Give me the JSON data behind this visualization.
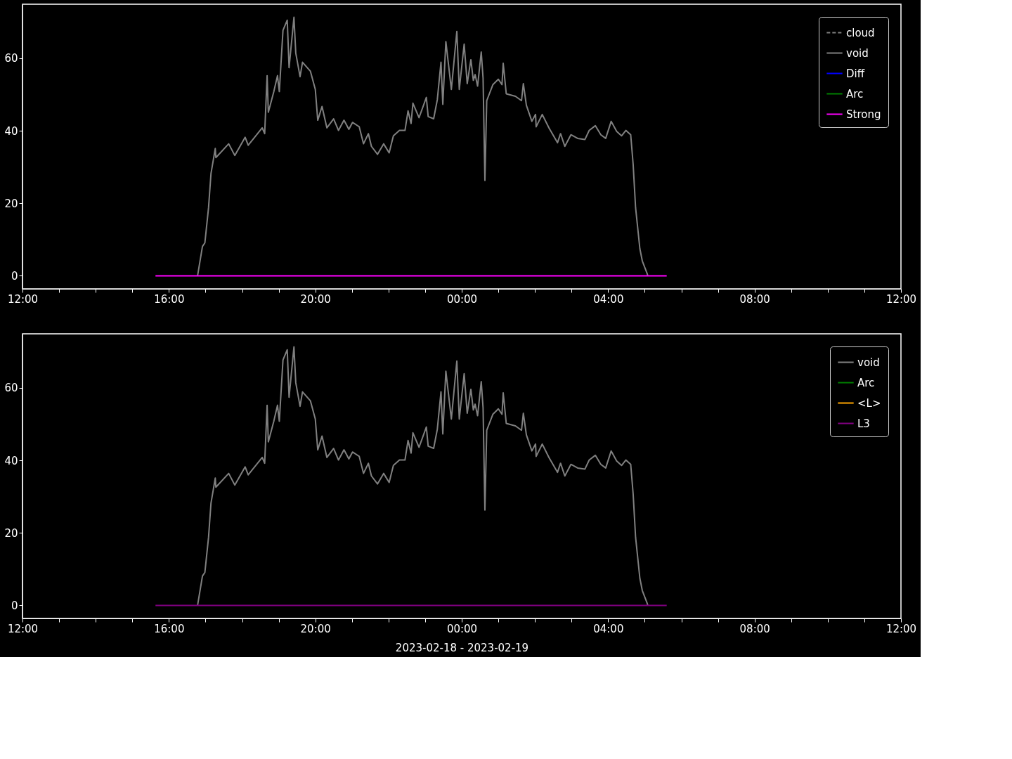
{
  "chart_data": [
    {
      "type": "line",
      "xlim": [
        "2023-02-18T12:00",
        "2023-02-19T12:00"
      ],
      "ylim": [
        -3.6,
        74.9
      ],
      "yticks": [
        0,
        20,
        40,
        60
      ],
      "grid": false,
      "legend": "top right",
      "xticks": [
        {
          "value": "2023-02-18T12:00",
          "label": "12:00"
        },
        {
          "value": "2023-02-18T13:00",
          "label": null
        },
        {
          "value": "2023-02-18T14:00",
          "label": null
        },
        {
          "value": "2023-02-18T15:00",
          "label": null
        },
        {
          "value": "2023-02-18T16:00",
          "label": "16:00"
        },
        {
          "value": "2023-02-18T17:00",
          "label": null
        },
        {
          "value": "2023-02-18T18:00",
          "label": null
        },
        {
          "value": "2023-02-18T19:00",
          "label": null
        },
        {
          "value": "2023-02-18T20:00",
          "label": "20:00"
        },
        {
          "value": "2023-02-18T21:00",
          "label": null
        },
        {
          "value": "2023-02-18T22:00",
          "label": null
        },
        {
          "value": "2023-02-18T23:00",
          "label": null
        },
        {
          "value": "2023-02-19T00:00",
          "label": "00:00"
        },
        {
          "value": "2023-02-19T01:00",
          "label": null
        },
        {
          "value": "2023-02-19T02:00",
          "label": null
        },
        {
          "value": "2023-02-19T03:00",
          "label": null
        },
        {
          "value": "2023-02-19T04:00",
          "label": "04:00"
        },
        {
          "value": "2023-02-19T05:00",
          "label": null
        },
        {
          "value": "2023-02-19T06:00",
          "label": null
        },
        {
          "value": "2023-02-19T07:00",
          "label": null
        },
        {
          "value": "2023-02-19T08:00",
          "label": "08:00"
        },
        {
          "value": "2023-02-19T09:00",
          "label": null
        },
        {
          "value": "2023-02-19T10:00",
          "label": null
        },
        {
          "value": "2023-02-19T11:00",
          "label": null
        },
        {
          "value": "2023-02-19T12:00",
          "label": "12:00"
        }
      ],
      "series": [
        {
          "name": "cloud",
          "color": "#808080",
          "line_style": "dashed"
        },
        {
          "name": "void",
          "color": "#808080",
          "x": [
            "2023-02-18T16:47",
            "2023-02-18T16:55",
            "2023-02-18T16:59",
            "2023-02-18T17:05",
            "2023-02-18T17:09",
            "2023-02-18T17:16",
            "2023-02-18T17:17",
            "2023-02-18T17:38",
            "2023-02-18T17:48",
            "2023-02-18T18:05",
            "2023-02-18T18:10",
            "2023-02-18T18:33",
            "2023-02-18T18:37",
            "2023-02-18T18:41",
            "2023-02-18T18:43",
            "2023-02-18T18:52",
            "2023-02-18T18:58",
            "2023-02-18T19:01",
            "2023-02-18T19:07",
            "2023-02-18T19:14",
            "2023-02-18T19:17",
            "2023-02-18T19:25",
            "2023-02-18T19:28",
            "2023-02-18T19:35",
            "2023-02-18T19:39",
            "2023-02-18T19:52",
            "2023-02-18T20:00",
            "2023-02-18T20:04",
            "2023-02-18T20:11",
            "2023-02-18T20:19",
            "2023-02-18T20:30",
            "2023-02-18T20:38",
            "2023-02-18T20:47",
            "2023-02-18T20:55",
            "2023-02-18T21:01",
            "2023-02-18T21:12",
            "2023-02-18T21:19",
            "2023-02-18T21:27",
            "2023-02-18T21:32",
            "2023-02-18T21:42",
            "2023-02-18T21:52",
            "2023-02-18T22:01",
            "2023-02-18T22:08",
            "2023-02-18T22:18",
            "2023-02-18T22:27",
            "2023-02-18T22:32",
            "2023-02-18T22:37",
            "2023-02-18T22:40",
            "2023-02-18T22:50",
            "2023-02-18T23:02",
            "2023-02-18T23:05",
            "2023-02-18T23:14",
            "2023-02-18T23:20",
            "2023-02-18T23:26",
            "2023-02-18T23:29",
            "2023-02-18T23:34",
            "2023-02-18T23:43",
            "2023-02-18T23:52",
            "2023-02-18T23:56",
            "2023-02-19T00:04",
            "2023-02-19T00:09",
            "2023-02-19T00:15",
            "2023-02-19T00:19",
            "2023-02-19T00:22",
            "2023-02-19T00:26",
            "2023-02-19T00:32",
            "2023-02-19T00:35",
            "2023-02-19T00:38",
            "2023-02-19T00:41",
            "2023-02-19T00:51",
            "2023-02-19T01:00",
            "2023-02-19T01:06",
            "2023-02-19T01:08",
            "2023-02-19T01:13",
            "2023-02-19T01:28",
            "2023-02-19T01:38",
            "2023-02-19T01:41",
            "2023-02-19T01:46",
            "2023-02-19T01:55",
            "2023-02-19T02:01",
            "2023-02-19T02:02",
            "2023-02-19T02:12",
            "2023-02-19T02:23",
            "2023-02-19T02:37",
            "2023-02-19T02:42",
            "2023-02-19T02:49",
            "2023-02-19T02:59",
            "2023-02-19T03:10",
            "2023-02-19T03:22",
            "2023-02-19T03:29",
            "2023-02-19T03:39",
            "2023-02-19T03:48",
            "2023-02-19T03:56",
            "2023-02-19T04:05",
            "2023-02-19T04:14",
            "2023-02-19T04:22",
            "2023-02-19T04:29",
            "2023-02-19T04:37",
            "2023-02-19T04:41",
            "2023-02-19T04:45",
            "2023-02-19T04:52",
            "2023-02-19T04:56",
            "2023-02-19T05:04",
            "2023-02-19T05:05"
          ],
          "values": [
            0,
            8.1,
            9.1,
            18.8,
            28.2,
            35.1,
            32.6,
            36.4,
            33.2,
            38.2,
            36.0,
            40.8,
            39.2,
            55.2,
            45.1,
            50.8,
            55.2,
            50.8,
            67.7,
            70.5,
            57.4,
            71.3,
            61.4,
            54.9,
            58.9,
            56.4,
            51.4,
            42.9,
            46.7,
            40.8,
            43.3,
            40.1,
            42.9,
            40.4,
            42.3,
            41.1,
            36.4,
            39.2,
            35.7,
            33.5,
            36.4,
            33.9,
            38.6,
            40.1,
            40.1,
            45.5,
            42.0,
            47.6,
            43.6,
            49.2,
            43.9,
            43.3,
            48.6,
            58.9,
            47.3,
            64.6,
            51.4,
            67.4,
            51.4,
            63.9,
            53.0,
            59.6,
            53.9,
            55.5,
            52.3,
            61.7,
            54.5,
            26.3,
            48.3,
            52.7,
            54.2,
            52.7,
            58.6,
            50.2,
            49.5,
            48.3,
            53.0,
            47.0,
            42.6,
            44.5,
            41.1,
            44.5,
            40.8,
            36.7,
            39.2,
            35.7,
            38.9,
            37.9,
            37.6,
            40.1,
            41.4,
            38.9,
            37.9,
            42.6,
            39.8,
            38.6,
            40.1,
            38.9,
            30.7,
            18.8,
            7.5,
            4.1,
            0.6,
            0
          ]
        },
        {
          "name": "Diff",
          "color": "#0000ff"
        },
        {
          "name": "Arc",
          "color": "#008000"
        },
        {
          "name": "Strong",
          "color": "#ff00ff",
          "x": [
            "2023-02-18T15:38",
            "2023-02-19T05:36"
          ],
          "values": [
            0,
            0
          ]
        }
      ]
    },
    {
      "type": "line",
      "xlabel": "2023-02-18 - 2023-02-19",
      "xlim": [
        "2023-02-18T12:00",
        "2023-02-19T12:00"
      ],
      "ylim": [
        -3.6,
        74.9
      ],
      "yticks": [
        0,
        20,
        40,
        60
      ],
      "grid": false,
      "legend": "top right",
      "xticks": [
        {
          "value": "2023-02-18T12:00",
          "label": "12:00"
        },
        {
          "value": "2023-02-18T13:00",
          "label": null
        },
        {
          "value": "2023-02-18T14:00",
          "label": null
        },
        {
          "value": "2023-02-18T15:00",
          "label": null
        },
        {
          "value": "2023-02-18T16:00",
          "label": "16:00"
        },
        {
          "value": "2023-02-18T17:00",
          "label": null
        },
        {
          "value": "2023-02-18T18:00",
          "label": null
        },
        {
          "value": "2023-02-18T19:00",
          "label": null
        },
        {
          "value": "2023-02-18T20:00",
          "label": "20:00"
        },
        {
          "value": "2023-02-18T21:00",
          "label": null
        },
        {
          "value": "2023-02-18T22:00",
          "label": null
        },
        {
          "value": "2023-02-18T23:00",
          "label": null
        },
        {
          "value": "2023-02-19T00:00",
          "label": "00:00"
        },
        {
          "value": "2023-02-19T01:00",
          "label": null
        },
        {
          "value": "2023-02-19T02:00",
          "label": null
        },
        {
          "value": "2023-02-19T03:00",
          "label": null
        },
        {
          "value": "2023-02-19T04:00",
          "label": "04:00"
        },
        {
          "value": "2023-02-19T05:00",
          "label": null
        },
        {
          "value": "2023-02-19T06:00",
          "label": null
        },
        {
          "value": "2023-02-19T07:00",
          "label": null
        },
        {
          "value": "2023-02-19T08:00",
          "label": "08:00"
        },
        {
          "value": "2023-02-19T09:00",
          "label": null
        },
        {
          "value": "2023-02-19T10:00",
          "label": null
        },
        {
          "value": "2023-02-19T11:00",
          "label": null
        },
        {
          "value": "2023-02-19T12:00",
          "label": "12:00"
        }
      ],
      "series": [
        {
          "name": "void",
          "color": "#808080",
          "x": [
            "2023-02-18T16:47",
            "2023-02-18T16:55",
            "2023-02-18T16:59",
            "2023-02-18T17:05",
            "2023-02-18T17:09",
            "2023-02-18T17:16",
            "2023-02-18T17:17",
            "2023-02-18T17:38",
            "2023-02-18T17:48",
            "2023-02-18T18:05",
            "2023-02-18T18:10",
            "2023-02-18T18:33",
            "2023-02-18T18:37",
            "2023-02-18T18:41",
            "2023-02-18T18:43",
            "2023-02-18T18:52",
            "2023-02-18T18:58",
            "2023-02-18T19:01",
            "2023-02-18T19:07",
            "2023-02-18T19:14",
            "2023-02-18T19:17",
            "2023-02-18T19:25",
            "2023-02-18T19:28",
            "2023-02-18T19:35",
            "2023-02-18T19:39",
            "2023-02-18T19:52",
            "2023-02-18T20:00",
            "2023-02-18T20:04",
            "2023-02-18T20:11",
            "2023-02-18T20:19",
            "2023-02-18T20:30",
            "2023-02-18T20:38",
            "2023-02-18T20:47",
            "2023-02-18T20:55",
            "2023-02-18T21:01",
            "2023-02-18T21:12",
            "2023-02-18T21:19",
            "2023-02-18T21:27",
            "2023-02-18T21:32",
            "2023-02-18T21:42",
            "2023-02-18T21:52",
            "2023-02-18T22:01",
            "2023-02-18T22:08",
            "2023-02-18T22:18",
            "2023-02-18T22:27",
            "2023-02-18T22:32",
            "2023-02-18T22:37",
            "2023-02-18T22:40",
            "2023-02-18T22:50",
            "2023-02-18T23:02",
            "2023-02-18T23:05",
            "2023-02-18T23:14",
            "2023-02-18T23:20",
            "2023-02-18T23:26",
            "2023-02-18T23:29",
            "2023-02-18T23:34",
            "2023-02-18T23:43",
            "2023-02-18T23:52",
            "2023-02-18T23:56",
            "2023-02-19T00:04",
            "2023-02-19T00:09",
            "2023-02-19T00:15",
            "2023-02-19T00:19",
            "2023-02-19T00:22",
            "2023-02-19T00:26",
            "2023-02-19T00:32",
            "2023-02-19T00:35",
            "2023-02-19T00:38",
            "2023-02-19T00:41",
            "2023-02-19T00:51",
            "2023-02-19T01:00",
            "2023-02-19T01:06",
            "2023-02-19T01:08",
            "2023-02-19T01:13",
            "2023-02-19T01:28",
            "2023-02-19T01:38",
            "2023-02-19T01:41",
            "2023-02-19T01:46",
            "2023-02-19T01:55",
            "2023-02-19T02:01",
            "2023-02-19T02:02",
            "2023-02-19T02:12",
            "2023-02-19T02:23",
            "2023-02-19T02:37",
            "2023-02-19T02:42",
            "2023-02-19T02:49",
            "2023-02-19T02:59",
            "2023-02-19T03:10",
            "2023-02-19T03:22",
            "2023-02-19T03:29",
            "2023-02-19T03:39",
            "2023-02-19T03:48",
            "2023-02-19T03:56",
            "2023-02-19T04:05",
            "2023-02-19T04:14",
            "2023-02-19T04:22",
            "2023-02-19T04:29",
            "2023-02-19T04:37",
            "2023-02-19T04:41",
            "2023-02-19T04:45",
            "2023-02-19T04:52",
            "2023-02-19T04:56",
            "2023-02-19T05:04",
            "2023-02-19T05:05"
          ],
          "values": [
            0,
            8.1,
            9.1,
            18.8,
            28.2,
            35.1,
            32.6,
            36.4,
            33.2,
            38.2,
            36.0,
            40.8,
            39.2,
            55.2,
            45.1,
            50.8,
            55.2,
            50.8,
            67.7,
            70.5,
            57.4,
            71.3,
            61.4,
            54.9,
            58.9,
            56.4,
            51.4,
            42.9,
            46.7,
            40.8,
            43.3,
            40.1,
            42.9,
            40.4,
            42.3,
            41.1,
            36.4,
            39.2,
            35.7,
            33.5,
            36.4,
            33.9,
            38.6,
            40.1,
            40.1,
            45.5,
            42.0,
            47.6,
            43.6,
            49.2,
            43.9,
            43.3,
            48.6,
            58.9,
            47.3,
            64.6,
            51.4,
            67.4,
            51.4,
            63.9,
            53.0,
            59.6,
            53.9,
            55.5,
            52.3,
            61.7,
            54.5,
            26.3,
            48.3,
            52.7,
            54.2,
            52.7,
            58.6,
            50.2,
            49.5,
            48.3,
            53.0,
            47.0,
            42.6,
            44.5,
            41.1,
            44.5,
            40.8,
            36.7,
            39.2,
            35.7,
            38.9,
            37.9,
            37.6,
            40.1,
            41.4,
            38.9,
            37.9,
            42.6,
            39.8,
            38.6,
            40.1,
            38.9,
            30.7,
            18.8,
            7.5,
            4.1,
            0.6,
            0
          ]
        },
        {
          "name": "Arc",
          "color": "#008000"
        },
        {
          "name": "<L>",
          "color": "#ffa500"
        },
        {
          "name": "L3",
          "color": "#800080",
          "x": [
            "2023-02-18T15:38",
            "2023-02-19T05:36"
          ],
          "values": [
            0,
            0
          ]
        }
      ]
    }
  ]
}
